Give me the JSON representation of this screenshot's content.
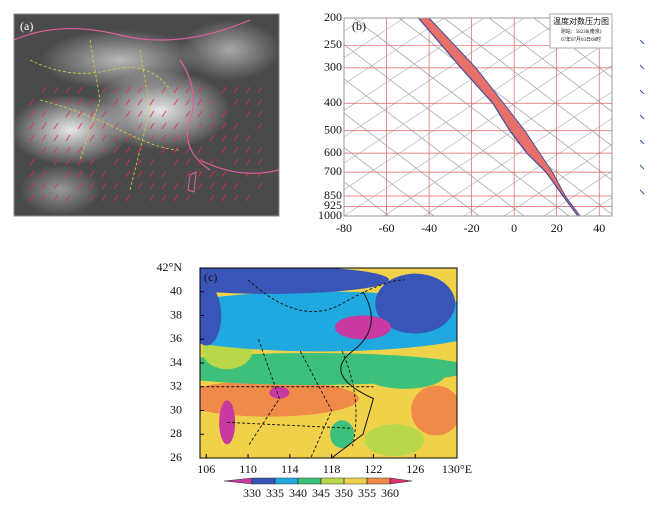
{
  "panel_a": {
    "label": "(a)"
  },
  "panel_b": {
    "label": "(b)",
    "title": "温度对数压力图",
    "station": "测站：58238(南京)",
    "time": "07年07月03日08时",
    "xlim": [
      -80,
      46
    ],
    "xticks": [
      -80,
      -60,
      -40,
      -20,
      0,
      20,
      40
    ],
    "ylim": [
      1000,
      200
    ],
    "yticks": [
      200,
      250,
      300,
      400,
      500,
      600,
      700,
      850,
      925,
      1000
    ],
    "log_scale": true,
    "pressure": [
      200,
      300,
      400,
      500,
      600,
      700,
      850,
      1000
    ],
    "left": [
      -45,
      -25,
      -10,
      -2,
      6,
      15,
      23,
      30
    ],
    "right": [
      -40,
      -18,
      -5,
      5,
      12,
      18,
      24,
      31
    ],
    "band_color": "#e8706a",
    "line_color": "#4a4f9a",
    "grid_color": "#e06060"
  },
  "panel_c": {
    "label": "(c)",
    "xlim": [
      105.4,
      130
    ],
    "xticks": [
      106,
      110,
      114,
      118,
      122,
      126,
      {
        "value": 130,
        "label": "130°E"
      }
    ],
    "ylim": [
      26,
      42
    ],
    "yticks": [
      26,
      28,
      30,
      32,
      34,
      36,
      38,
      40,
      {
        "value": 42,
        "label": "42°N"
      }
    ],
    "colorbar": {
      "lim": [
        330,
        360
      ],
      "ticks": [
        330,
        335,
        340,
        345,
        350,
        355,
        360
      ],
      "colors": [
        "#c83aa0",
        "#3a55b8",
        "#20a8e0",
        "#3cc07c",
        "#b8d84a",
        "#f0d24a",
        "#f08a48",
        "#e0306a"
      ]
    }
  }
}
